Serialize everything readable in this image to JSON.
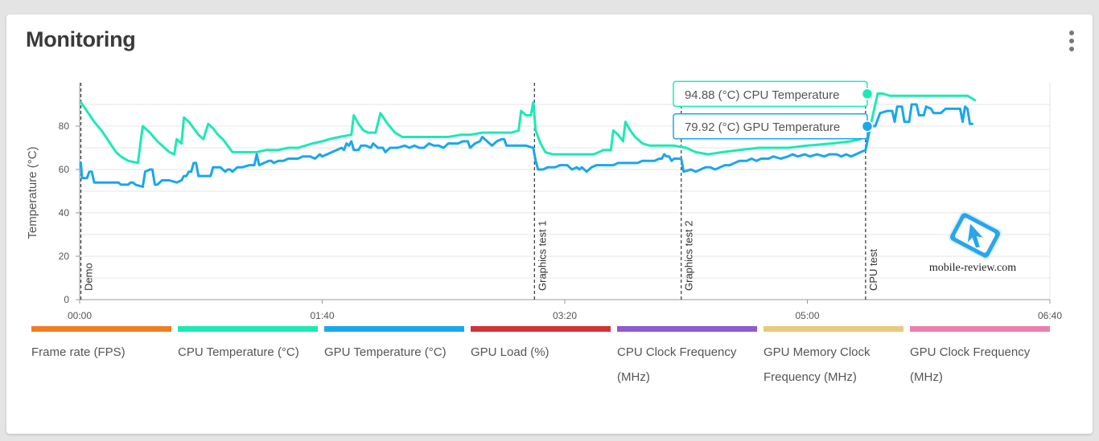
{
  "header": {
    "title": "Monitoring"
  },
  "colors": {
    "cpu_temp": "#1de9b6",
    "gpu_temp": "#1aa7ec",
    "grid": "#e6e6e6",
    "marker": "#333333"
  },
  "chart_data": {
    "type": "line",
    "title": "",
    "xlabel": "",
    "ylabel": "Temperature (°C)",
    "xlim": [
      0,
      400
    ],
    "ylim": [
      0,
      100
    ],
    "x_ticks": [
      {
        "value": 0,
        "label": "00:00"
      },
      {
        "value": 100,
        "label": "01:40"
      },
      {
        "value": 200,
        "label": "03:20"
      },
      {
        "value": 300,
        "label": "05:00"
      },
      {
        "value": 400,
        "label": "06:40"
      }
    ],
    "y_ticks": [
      0,
      20,
      40,
      60,
      80
    ],
    "grid": "horizontal",
    "markers": [
      {
        "x": 0.5,
        "label": "Demo"
      },
      {
        "x": 187.5,
        "label": "Graphics test 1"
      },
      {
        "x": 248,
        "label": "Graphics test 2"
      },
      {
        "x": 324,
        "label": "CPU test"
      }
    ],
    "series": [
      {
        "name": "CPU Temperature (°C)",
        "color": "#1de9b6",
        "points": [
          [
            0.5,
            91
          ],
          [
            3,
            87
          ],
          [
            6,
            82
          ],
          [
            9,
            78
          ],
          [
            12,
            73
          ],
          [
            15,
            68
          ],
          [
            17,
            66
          ],
          [
            20,
            64
          ],
          [
            24,
            63
          ],
          [
            26,
            80
          ],
          [
            29,
            77
          ],
          [
            32,
            73
          ],
          [
            35,
            70
          ],
          [
            37,
            68
          ],
          [
            39,
            67
          ],
          [
            40,
            74
          ],
          [
            42,
            72
          ],
          [
            43,
            84
          ],
          [
            45,
            82
          ],
          [
            47,
            79
          ],
          [
            49,
            76
          ],
          [
            51,
            74
          ],
          [
            53,
            81
          ],
          [
            55,
            79
          ],
          [
            57,
            76
          ],
          [
            59,
            74
          ],
          [
            61,
            71
          ],
          [
            63,
            68
          ],
          [
            66,
            68
          ],
          [
            69,
            68
          ],
          [
            73,
            68
          ],
          [
            77,
            69
          ],
          [
            82,
            69
          ],
          [
            86,
            70
          ],
          [
            90,
            70
          ],
          [
            93,
            71
          ],
          [
            96,
            72
          ],
          [
            100,
            73
          ],
          [
            103,
            74
          ],
          [
            107,
            75
          ],
          [
            112,
            76
          ],
          [
            113,
            85
          ],
          [
            115,
            81
          ],
          [
            117,
            78
          ],
          [
            119,
            77
          ],
          [
            122,
            77
          ],
          [
            124,
            86
          ],
          [
            127,
            81
          ],
          [
            130,
            77
          ],
          [
            133,
            75
          ],
          [
            138,
            75
          ],
          [
            145,
            75
          ],
          [
            152,
            75
          ],
          [
            157,
            76
          ],
          [
            161,
            76
          ],
          [
            166,
            77
          ],
          [
            172,
            77
          ],
          [
            178,
            77
          ],
          [
            181,
            78
          ],
          [
            182,
            87
          ],
          [
            184,
            85
          ],
          [
            186,
            85
          ],
          [
            187,
            91
          ],
          [
            188,
            78
          ],
          [
            190,
            72
          ],
          [
            192,
            68
          ],
          [
            195,
            67
          ],
          [
            201,
            67
          ],
          [
            207,
            67
          ],
          [
            212,
            67
          ],
          [
            216,
            69
          ],
          [
            219,
            69
          ],
          [
            220,
            78
          ],
          [
            222,
            76
          ],
          [
            224,
            73
          ],
          [
            225,
            82
          ],
          [
            227,
            78
          ],
          [
            229,
            75
          ],
          [
            232,
            72
          ],
          [
            235,
            71
          ],
          [
            240,
            71
          ],
          [
            245,
            71
          ],
          [
            250,
            70
          ],
          [
            254,
            68
          ],
          [
            259,
            67
          ],
          [
            265,
            68
          ],
          [
            272,
            69
          ],
          [
            280,
            70
          ],
          [
            292,
            70
          ],
          [
            300,
            71
          ],
          [
            310,
            72
          ],
          [
            318,
            73
          ],
          [
            322,
            74
          ],
          [
            324,
            78
          ],
          [
            326,
            80
          ],
          [
            329,
            95
          ],
          [
            331,
            95
          ],
          [
            334,
            94
          ],
          [
            340,
            94
          ],
          [
            346,
            94
          ],
          [
            352,
            94
          ],
          [
            360,
            94
          ],
          [
            366,
            94
          ],
          [
            369,
            92
          ]
        ]
      },
      {
        "name": "GPU Temperature (°C)",
        "color": "#1aa7ec",
        "points": [
          [
            0.5,
            63
          ],
          [
            1,
            56
          ],
          [
            3,
            56
          ],
          [
            4,
            59
          ],
          [
            5,
            59
          ],
          [
            6,
            54
          ],
          [
            10,
            54
          ],
          [
            14,
            54
          ],
          [
            16,
            54
          ],
          [
            17,
            53
          ],
          [
            20,
            53
          ],
          [
            21,
            54
          ],
          [
            22,
            54
          ],
          [
            23,
            53
          ],
          [
            26,
            52
          ],
          [
            27,
            59
          ],
          [
            29,
            60
          ],
          [
            30,
            60
          ],
          [
            31,
            53
          ],
          [
            32,
            53
          ],
          [
            34,
            55
          ],
          [
            37,
            55
          ],
          [
            40,
            54
          ],
          [
            42,
            55
          ],
          [
            43,
            57
          ],
          [
            44,
            57
          ],
          [
            45,
            59
          ],
          [
            46,
            59
          ],
          [
            47,
            63
          ],
          [
            48,
            63
          ],
          [
            49,
            57
          ],
          [
            51,
            57
          ],
          [
            54,
            57
          ],
          [
            55,
            61
          ],
          [
            58,
            61
          ],
          [
            60,
            59
          ],
          [
            61,
            60
          ],
          [
            62,
            60
          ],
          [
            63,
            59
          ],
          [
            65,
            61
          ],
          [
            67,
            61
          ],
          [
            70,
            62
          ],
          [
            72,
            62
          ],
          [
            73,
            67
          ],
          [
            74,
            62
          ],
          [
            76,
            63
          ],
          [
            78,
            64
          ],
          [
            79,
            64
          ],
          [
            80,
            63
          ],
          [
            82,
            64
          ],
          [
            84,
            64
          ],
          [
            86,
            65
          ],
          [
            88,
            65
          ],
          [
            90,
            65
          ],
          [
            92,
            66
          ],
          [
            95,
            66
          ],
          [
            97,
            65
          ],
          [
            99,
            67
          ],
          [
            100,
            66
          ],
          [
            102,
            67
          ],
          [
            104,
            68
          ],
          [
            106,
            69
          ],
          [
            108,
            70
          ],
          [
            109,
            69
          ],
          [
            110,
            72
          ],
          [
            111,
            71
          ],
          [
            112,
            73
          ],
          [
            113,
            69
          ],
          [
            115,
            69
          ],
          [
            116,
            71
          ],
          [
            118,
            71
          ],
          [
            120,
            70
          ],
          [
            121,
            72
          ],
          [
            123,
            70
          ],
          [
            125,
            70
          ],
          [
            126,
            68
          ],
          [
            128,
            70
          ],
          [
            131,
            70
          ],
          [
            134,
            71
          ],
          [
            136,
            70
          ],
          [
            138,
            71
          ],
          [
            140,
            70
          ],
          [
            142,
            70
          ],
          [
            144,
            72
          ],
          [
            146,
            71
          ],
          [
            148,
            71
          ],
          [
            150,
            70
          ],
          [
            152,
            72
          ],
          [
            154,
            72
          ],
          [
            156,
            72
          ],
          [
            158,
            73
          ],
          [
            160,
            73
          ],
          [
            161,
            70
          ],
          [
            163,
            72
          ],
          [
            165,
            73
          ],
          [
            166,
            75
          ],
          [
            168,
            73
          ],
          [
            170,
            71
          ],
          [
            172,
            73
          ],
          [
            174,
            74
          ],
          [
            175,
            74
          ],
          [
            176,
            71
          ],
          [
            180,
            71
          ],
          [
            184,
            71
          ],
          [
            187,
            70
          ],
          [
            188,
            64
          ],
          [
            189,
            60
          ],
          [
            191,
            60
          ],
          [
            193,
            61
          ],
          [
            196,
            61
          ],
          [
            198,
            62
          ],
          [
            201,
            62
          ],
          [
            203,
            60
          ],
          [
            205,
            61
          ],
          [
            206,
            60
          ],
          [
            207,
            61
          ],
          [
            208,
            60
          ],
          [
            209,
            59
          ],
          [
            211,
            61
          ],
          [
            213,
            62
          ],
          [
            216,
            62
          ],
          [
            218,
            62
          ],
          [
            220,
            62
          ],
          [
            222,
            63
          ],
          [
            225,
            63
          ],
          [
            228,
            63
          ],
          [
            230,
            63
          ],
          [
            232,
            64
          ],
          [
            235,
            64
          ],
          [
            237,
            64
          ],
          [
            239,
            65
          ],
          [
            240,
            65
          ],
          [
            241,
            67
          ],
          [
            242,
            66
          ],
          [
            243,
            66
          ],
          [
            244,
            64
          ],
          [
            245,
            65
          ],
          [
            248,
            65
          ],
          [
            249,
            59
          ],
          [
            252,
            60
          ],
          [
            254,
            59
          ],
          [
            256,
            60
          ],
          [
            258,
            61
          ],
          [
            260,
            61
          ],
          [
            262,
            60
          ],
          [
            264,
            61
          ],
          [
            266,
            62
          ],
          [
            268,
            62
          ],
          [
            270,
            63
          ],
          [
            272,
            64
          ],
          [
            275,
            64
          ],
          [
            277,
            65
          ],
          [
            279,
            64
          ],
          [
            281,
            65
          ],
          [
            284,
            65
          ],
          [
            286,
            66
          ],
          [
            289,
            65
          ],
          [
            292,
            66
          ],
          [
            294,
            67
          ],
          [
            296,
            66
          ],
          [
            299,
            67
          ],
          [
            301,
            66
          ],
          [
            304,
            67
          ],
          [
            307,
            66
          ],
          [
            309,
            67
          ],
          [
            312,
            67
          ],
          [
            314,
            66
          ],
          [
            316,
            67
          ],
          [
            318,
            66
          ],
          [
            320,
            67
          ],
          [
            322,
            68
          ],
          [
            324,
            69
          ],
          [
            326,
            80
          ],
          [
            328,
            80
          ],
          [
            330,
            86
          ],
          [
            333,
            87
          ],
          [
            335,
            87
          ],
          [
            336,
            82
          ],
          [
            337,
            89
          ],
          [
            339,
            89
          ],
          [
            340,
            82
          ],
          [
            342,
            82
          ],
          [
            343,
            90
          ],
          [
            345,
            90
          ],
          [
            346,
            85
          ],
          [
            348,
            85
          ],
          [
            349,
            89
          ],
          [
            351,
            88
          ],
          [
            352,
            86
          ],
          [
            355,
            86
          ],
          [
            357,
            88
          ],
          [
            360,
            88
          ],
          [
            363,
            88
          ],
          [
            364,
            82
          ],
          [
            365,
            89
          ],
          [
            366,
            88
          ],
          [
            367,
            81
          ],
          [
            368,
            81
          ]
        ]
      }
    ],
    "tooltip": {
      "entries": [
        {
          "series": "CPU Temperature (°C)",
          "x": 324.7,
          "y": 94.88,
          "text": "94.88 (°C) CPU Temperature"
        },
        {
          "series": "GPU Temperature (°C)",
          "x": 324.7,
          "y": 79.92,
          "text": "79.92 (°C) GPU Temperature"
        }
      ]
    },
    "legend": {
      "placement": "bottom",
      "items": [
        {
          "label": "Frame rate (FPS)",
          "color": "#ef7d22"
        },
        {
          "label": "CPU Temperature (°C)",
          "color": "#1de9b6"
        },
        {
          "label": "GPU Temperature (°C)",
          "color": "#1aa7ec"
        },
        {
          "label": "GPU Load (%)",
          "color": "#d23236"
        },
        {
          "label": "CPU Clock Frequency (MHz)",
          "color": "#8f59cf"
        },
        {
          "label": "GPU Memory Clock Frequency (MHz)",
          "color": "#e9c97d"
        },
        {
          "label": "GPU Clock Frequency (MHz)",
          "color": "#ea7fb0"
        }
      ]
    }
  },
  "watermark": {
    "text": "mobile-review.com",
    "icon": "mobile-review-logo-icon"
  },
  "menu": {
    "icon": "kebab-menu-icon"
  }
}
